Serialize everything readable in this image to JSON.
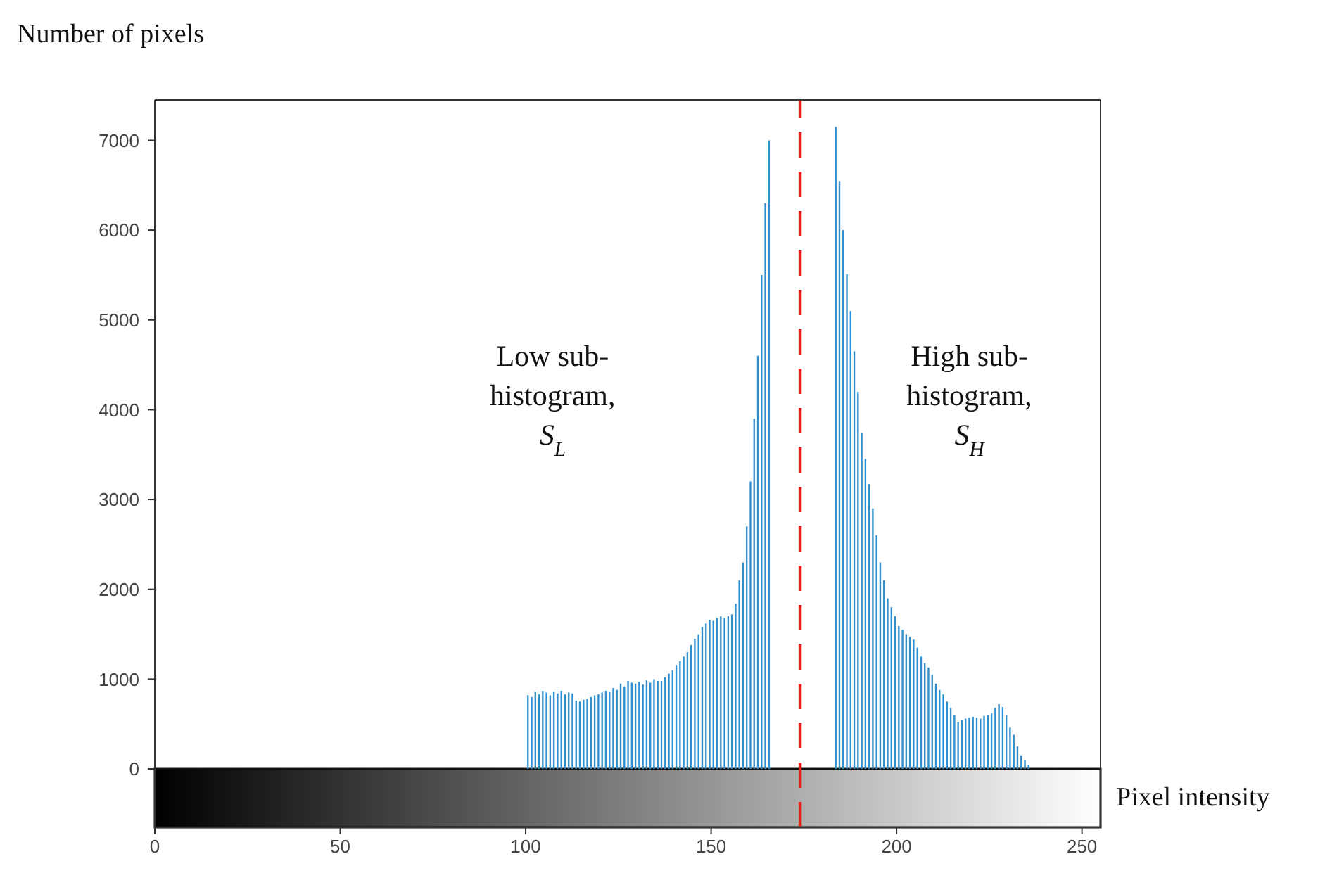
{
  "chart_data": {
    "type": "histogram",
    "ylabel": "Number of pixels",
    "xlabel": "Pixel intensity",
    "bins": [
      100,
      101,
      102,
      103,
      104,
      105,
      106,
      107,
      108,
      109,
      110,
      111,
      112,
      113,
      114,
      115,
      116,
      117,
      118,
      119,
      120,
      121,
      122,
      123,
      124,
      125,
      126,
      127,
      128,
      129,
      130,
      131,
      132,
      133,
      134,
      135,
      136,
      137,
      138,
      139,
      140,
      141,
      142,
      143,
      144,
      145,
      146,
      147,
      148,
      149,
      150,
      151,
      152,
      153,
      154,
      155,
      156,
      157,
      158,
      159,
      160,
      161,
      162,
      163,
      164,
      165,
      166,
      167,
      168,
      169,
      170,
      171,
      172,
      173,
      174,
      175,
      176,
      177,
      178,
      179,
      180,
      181,
      182,
      183,
      184,
      185,
      186,
      187,
      188,
      189,
      190,
      191,
      192,
      193,
      194,
      195,
      196,
      197,
      198,
      199,
      200,
      201,
      202,
      203,
      204,
      205,
      206,
      207,
      208,
      209,
      210,
      211,
      212,
      213,
      214,
      215,
      216,
      217,
      218,
      219,
      220,
      221,
      222,
      223,
      224,
      225,
      226,
      227,
      228,
      229,
      230,
      231,
      232,
      233,
      234,
      235,
      236
    ],
    "values": [
      820,
      800,
      860,
      830,
      870,
      850,
      820,
      860,
      840,
      870,
      830,
      850,
      840,
      760,
      750,
      770,
      780,
      800,
      820,
      830,
      850,
      870,
      860,
      900,
      880,
      950,
      920,
      980,
      960,
      950,
      970,
      940,
      990,
      960,
      1000,
      980,
      980,
      1020,
      1060,
      1100,
      1150,
      1200,
      1250,
      1300,
      1380,
      1450,
      1500,
      1580,
      1620,
      1660,
      1650,
      1680,
      1700,
      1680,
      1700,
      1720,
      1840,
      2100,
      2300,
      2700,
      3200,
      3900,
      4600,
      5500,
      6300,
      7000,
      null,
      null,
      null,
      null,
      null,
      null,
      null,
      null,
      null,
      null,
      null,
      null,
      null,
      null,
      null,
      null,
      null,
      7150,
      6540,
      6000,
      5510,
      5100,
      4650,
      4200,
      3740,
      3450,
      3170,
      2900,
      2600,
      2300,
      2100,
      1900,
      1800,
      1700,
      1590,
      1550,
      1500,
      1470,
      1440,
      1350,
      1250,
      1180,
      1130,
      1050,
      950,
      880,
      830,
      750,
      680,
      600,
      520,
      540,
      560,
      570,
      580,
      570,
      560,
      590,
      600,
      620,
      680,
      720,
      690,
      600,
      460,
      380,
      250,
      150,
      100,
      40
    ],
    "color": "#2e8fd0",
    "xlim": [
      0,
      255
    ],
    "xticks": [
      0,
      50,
      100,
      150,
      200,
      250
    ],
    "ylim": [
      -650,
      7450
    ],
    "yticks": [
      0,
      1000,
      2000,
      3000,
      4000,
      5000,
      6000,
      7000
    ],
    "ref_lines": [
      {
        "axis": "x",
        "value": 174,
        "color": "#e0201b",
        "line_style": "dashed"
      }
    ],
    "annotations": [
      "Low sub-\nhistogram,\nS$_{L}$",
      "High sub-\nhistogram,\nS$_{H}$"
    ]
  }
}
